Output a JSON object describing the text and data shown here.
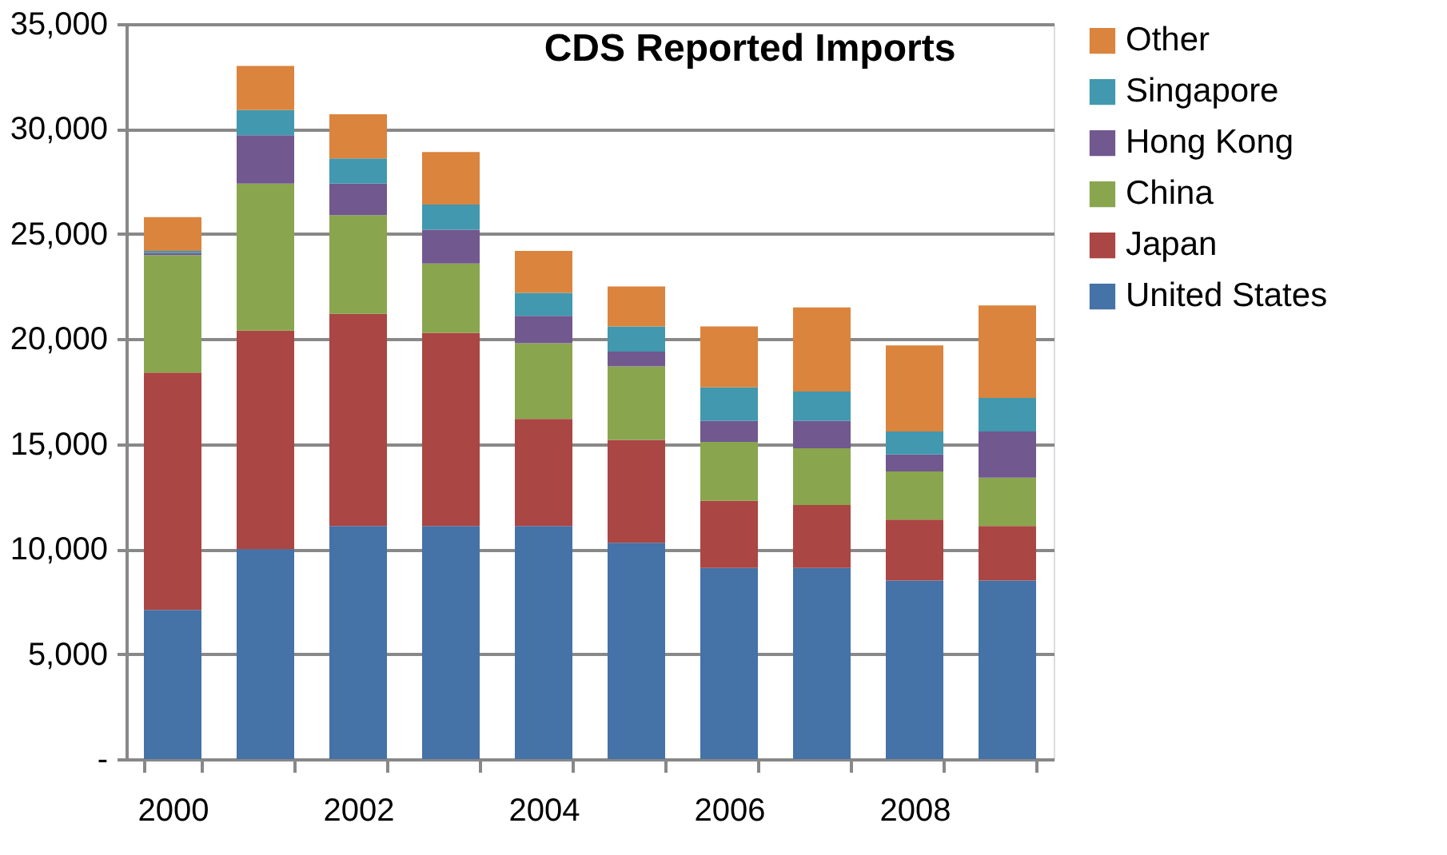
{
  "chart_data": {
    "type": "bar",
    "title": "CDS Reported Imports",
    "stacked": true,
    "categories": [
      "2000",
      null,
      "2002",
      null,
      "2004",
      null,
      "2006",
      null,
      "2008",
      null
    ],
    "series": [
      {
        "name": "United States",
        "color": "#4572a7",
        "values": [
          7100,
          10000,
          11100,
          11100,
          11100,
          10300,
          9100,
          9100,
          8500,
          8500
        ]
      },
      {
        "name": "Japan",
        "color": "#aa4643",
        "values": [
          11300,
          10400,
          10100,
          9200,
          5100,
          4900,
          3200,
          3000,
          2900,
          2600
        ]
      },
      {
        "name": "China",
        "color": "#89a54e",
        "values": [
          5600,
          7000,
          4700,
          3300,
          3600,
          3500,
          2800,
          2700,
          2300,
          2300
        ]
      },
      {
        "name": "Hong Kong",
        "color": "#71588f",
        "values": [
          100,
          2300,
          1500,
          1600,
          1300,
          700,
          1000,
          1300,
          800,
          2200
        ]
      },
      {
        "name": "Singapore",
        "color": "#4198af",
        "values": [
          100,
          1200,
          1200,
          1200,
          1100,
          1200,
          1600,
          1400,
          1100,
          1600
        ]
      },
      {
        "name": "Other",
        "color": "#db843d",
        "values": [
          1600,
          2100,
          2100,
          2500,
          2000,
          1900,
          2900,
          4000,
          4100,
          4400
        ]
      }
    ],
    "ylim": [
      0,
      35000
    ],
    "yticks": [
      {
        "value": 0,
        "label": "-"
      },
      {
        "value": 5000,
        "label": "5,000"
      },
      {
        "value": 10000,
        "label": "10,000"
      },
      {
        "value": 15000,
        "label": "15,000"
      },
      {
        "value": 20000,
        "label": "20,000"
      },
      {
        "value": 25000,
        "label": "25,000"
      },
      {
        "value": 30000,
        "label": "30,000"
      },
      {
        "value": 35000,
        "label": "35,000"
      }
    ],
    "grid": "y",
    "legend": "right"
  }
}
